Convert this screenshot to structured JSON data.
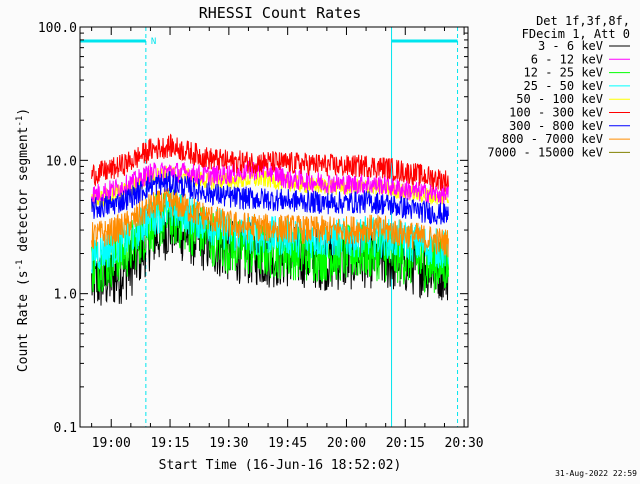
{
  "chart_data": {
    "type": "line",
    "title": "RHESSI Count Rates",
    "xlabel": "Start Time (16-Jun-16 18:52:02)",
    "ylabel_parts": [
      "Count Rate (s",
      "-1",
      " detector segment",
      "-1",
      ")"
    ],
    "y_scale": "log",
    "ylim": [
      0.1,
      100.0
    ],
    "xlim": [
      "18:52:02",
      "20:31:00"
    ],
    "x_ticks": [
      "19:00",
      "19:15",
      "19:30",
      "19:45",
      "20:00",
      "20:15",
      "20:30"
    ],
    "y_ticks": [
      "0.1",
      "1.0",
      "10.0",
      "100.0"
    ],
    "legend_position": "top-right",
    "legend_header": [
      "Det 1f,3f,8f,",
      "FDecim 1, Att 0"
    ],
    "timestamp": "31-Aug-2022 22:59",
    "night_intervals": [
      {
        "label": "N",
        "start": "18:52:02",
        "end": "19:08:50"
      },
      {
        "label": "",
        "start": "20:11:30",
        "end": "20:28:20"
      }
    ],
    "series": [
      {
        "name": "3 - 6 keV",
        "color": "#000000",
        "x": [
          "18:55",
          "19:00",
          "19:05",
          "19:10",
          "19:15",
          "19:20",
          "19:25",
          "19:30",
          "19:35",
          "19:40",
          "19:45",
          "19:50",
          "19:55",
          "20:00",
          "20:05",
          "20:10",
          "20:15",
          "20:20",
          "20:26"
        ],
        "values": [
          1.2,
          1.3,
          1.6,
          2.6,
          3.2,
          2.8,
          2.4,
          2.1,
          2.0,
          1.9,
          1.9,
          1.9,
          1.8,
          1.8,
          1.9,
          1.8,
          1.7,
          1.6,
          1.5
        ]
      },
      {
        "name": "6 - 12 keV",
        "color": "#ff00ff",
        "x": [
          "18:55",
          "19:00",
          "19:05",
          "19:10",
          "19:15",
          "19:20",
          "19:25",
          "19:30",
          "19:35",
          "19:40",
          "19:45",
          "19:50",
          "19:55",
          "20:00",
          "20:05",
          "20:10",
          "20:15",
          "20:20",
          "20:26"
        ],
        "values": [
          5.5,
          6.0,
          6.7,
          8.0,
          8.3,
          8.0,
          7.7,
          7.9,
          8.4,
          8.5,
          7.2,
          7.0,
          6.8,
          6.6,
          6.7,
          6.5,
          6.0,
          5.7,
          5.5
        ]
      },
      {
        "name": "12 - 25 keV",
        "color": "#00ff00",
        "x": [
          "18:55",
          "19:00",
          "19:05",
          "19:10",
          "19:15",
          "19:20",
          "19:25",
          "19:30",
          "19:35",
          "19:40",
          "19:45",
          "19:50",
          "19:55",
          "20:00",
          "20:05",
          "20:10",
          "20:15",
          "20:20",
          "20:26"
        ],
        "values": [
          1.6,
          1.8,
          2.2,
          3.3,
          3.8,
          3.2,
          2.7,
          2.3,
          2.2,
          2.1,
          2.1,
          2.0,
          2.0,
          2.0,
          2.1,
          2.0,
          1.9,
          1.7,
          1.6
        ]
      },
      {
        "name": "25 - 50 keV",
        "color": "#00ffff",
        "x": [
          "18:55",
          "19:00",
          "19:05",
          "19:10",
          "19:15",
          "19:20",
          "19:25",
          "19:30",
          "19:35",
          "19:40",
          "19:45",
          "19:50",
          "19:55",
          "20:00",
          "20:05",
          "20:10",
          "20:15",
          "20:20",
          "20:26"
        ],
        "values": [
          2.0,
          2.2,
          2.7,
          3.8,
          4.3,
          3.9,
          3.3,
          2.9,
          2.8,
          2.7,
          2.7,
          2.6,
          2.6,
          2.6,
          2.7,
          2.6,
          2.5,
          2.3,
          2.1
        ]
      },
      {
        "name": "50 - 100 keV",
        "color": "#ffff00",
        "x": [
          "18:55",
          "19:00",
          "19:05",
          "19:10",
          "19:15",
          "19:20",
          "19:25",
          "19:30",
          "19:35",
          "19:40",
          "19:45",
          "19:50",
          "19:55",
          "20:00",
          "20:05",
          "20:10",
          "20:15",
          "20:20",
          "20:26"
        ],
        "values": [
          5.0,
          5.5,
          6.2,
          7.5,
          8.0,
          7.5,
          7.0,
          7.0,
          7.2,
          7.2,
          6.8,
          6.5,
          6.4,
          6.3,
          6.3,
          6.2,
          5.8,
          5.5,
          5.2
        ]
      },
      {
        "name": "100 - 300 keV",
        "color": "#ff0000",
        "x": [
          "18:55",
          "19:00",
          "19:05",
          "19:10",
          "19:15",
          "19:20",
          "19:25",
          "19:30",
          "19:35",
          "19:40",
          "19:45",
          "19:50",
          "19:55",
          "20:00",
          "20:05",
          "20:10",
          "20:15",
          "20:20",
          "20:26"
        ],
        "values": [
          7.8,
          8.5,
          9.8,
          12.0,
          12.8,
          11.5,
          10.3,
          9.8,
          9.7,
          9.7,
          9.5,
          9.4,
          9.2,
          9.0,
          9.1,
          8.8,
          8.2,
          7.6,
          7.0
        ]
      },
      {
        "name": "300 - 800 keV",
        "color": "#0000ff",
        "x": [
          "18:55",
          "19:00",
          "19:05",
          "19:10",
          "19:15",
          "19:20",
          "19:25",
          "19:30",
          "19:35",
          "19:40",
          "19:45",
          "19:50",
          "19:55",
          "20:00",
          "20:05",
          "20:10",
          "20:15",
          "20:20",
          "20:26"
        ],
        "values": [
          4.3,
          4.6,
          5.3,
          6.5,
          6.8,
          6.2,
          5.7,
          5.3,
          5.2,
          5.1,
          5.0,
          4.9,
          4.8,
          4.8,
          4.9,
          4.7,
          4.4,
          4.1,
          3.9
        ]
      },
      {
        "name": "800 - 7000 keV",
        "color": "#ff8c00",
        "x": [
          "18:55",
          "19:00",
          "19:05",
          "19:10",
          "19:15",
          "19:20",
          "19:25",
          "19:30",
          "19:35",
          "19:40",
          "19:45",
          "19:50",
          "19:55",
          "20:00",
          "20:05",
          "20:10",
          "20:15",
          "20:20",
          "20:26"
        ],
        "values": [
          2.7,
          2.9,
          3.4,
          4.5,
          4.9,
          4.3,
          3.7,
          3.3,
          3.2,
          3.1,
          3.1,
          3.0,
          3.0,
          3.0,
          3.1,
          3.0,
          2.8,
          2.6,
          2.4
        ]
      },
      {
        "name": "7000 - 15000 keV",
        "color": "#808000",
        "x": [],
        "values": []
      }
    ]
  }
}
